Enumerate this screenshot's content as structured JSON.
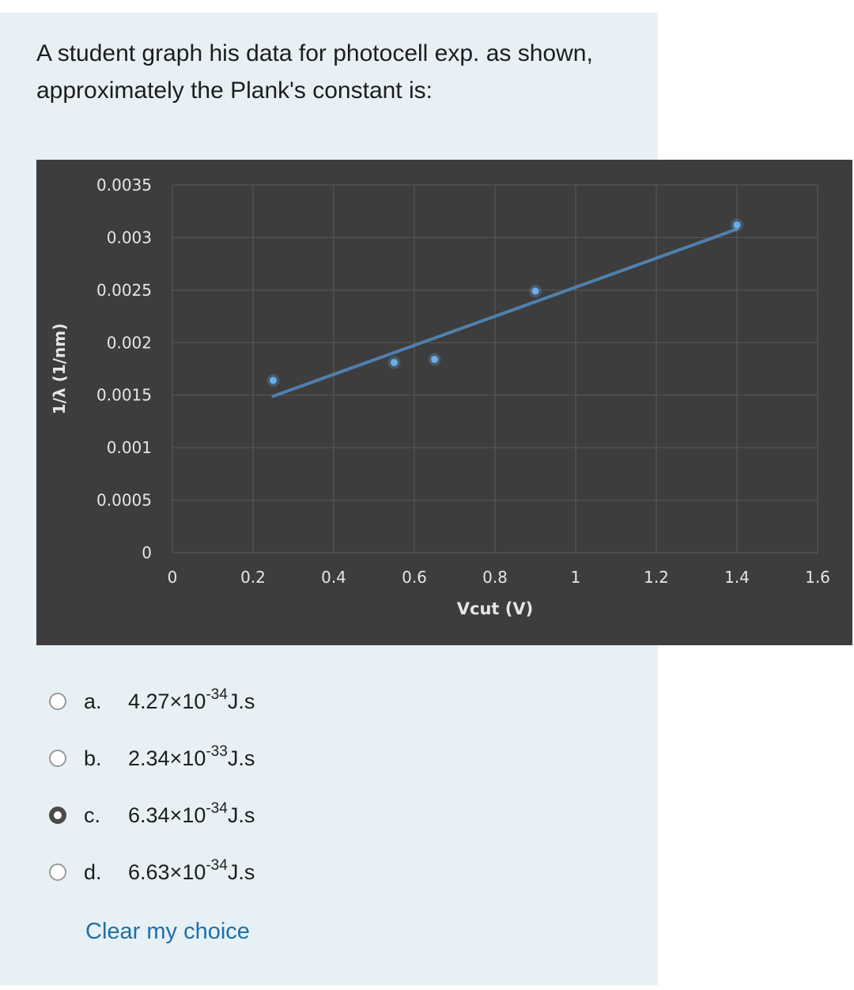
{
  "question": {
    "text": "A student graph his data for photocell exp. as shown, approximately the Plank's constant is:"
  },
  "chart_data": {
    "type": "scatter",
    "title": "",
    "xlabel": "Vcut (V)",
    "ylabel": "1/λ (1/nm)",
    "xlim": [
      0,
      1.6
    ],
    "ylim": [
      0,
      0.0035
    ],
    "x_ticks": [
      "0",
      "0.2",
      "0.4",
      "0.6",
      "0.8",
      "1",
      "1.2",
      "1.4",
      "1.6"
    ],
    "y_ticks": [
      "0",
      "0.0005",
      "0.001",
      "0.0015",
      "0.002",
      "0.0025",
      "0.003",
      "0.0035"
    ],
    "grid": true,
    "legend": "none",
    "points": [
      {
        "x": 0.25,
        "y": 0.00164
      },
      {
        "x": 0.55,
        "y": 0.00181
      },
      {
        "x": 0.65,
        "y": 0.00184
      },
      {
        "x": 0.9,
        "y": 0.00249
      },
      {
        "x": 1.4,
        "y": 0.00312
      }
    ],
    "trendline": {
      "x": [
        0.25,
        1.4
      ],
      "y": [
        0.00149,
        0.00308
      ]
    },
    "colors": {
      "background": "#3d3d3d",
      "grid": "#5a5a5a",
      "point": "#6aaeea",
      "line": "#4f80ad",
      "text": "#e6e6e6"
    }
  },
  "options": [
    {
      "letter": "a.",
      "mantissa": "4.27×10",
      "exponent": "-34",
      "unit": "J.s",
      "checked": false
    },
    {
      "letter": "b.",
      "mantissa": "2.34×10",
      "exponent": "-33",
      "unit": "J.s",
      "checked": false
    },
    {
      "letter": "c.",
      "mantissa": "6.34×10",
      "exponent": "-34",
      "unit": "J.s",
      "checked": true
    },
    {
      "letter": "d.",
      "mantissa": "6.63×10",
      "exponent": "-34",
      "unit": "J.s",
      "checked": false
    }
  ],
  "clear_choice": "Clear my choice"
}
